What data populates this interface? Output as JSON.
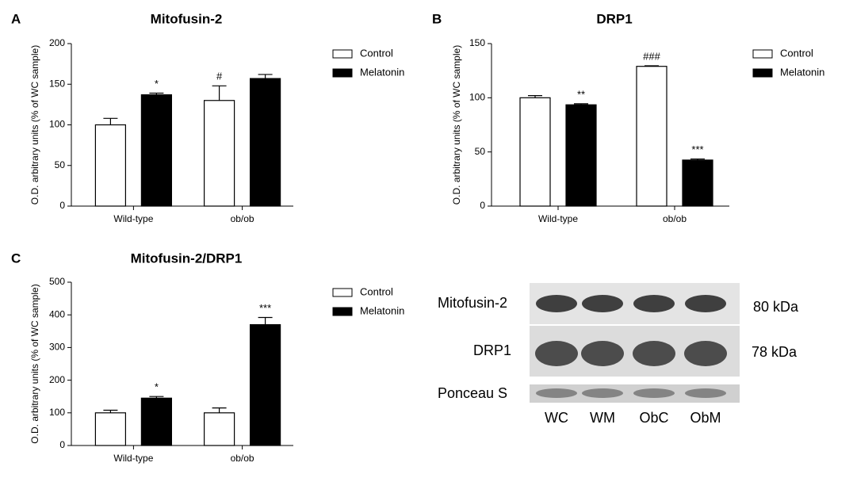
{
  "chart_data": [
    {
      "type": "bar",
      "panel": "A",
      "title": "Mitofusin-2",
      "y_label": "O.D. arbitrary units (% of WC sample)",
      "categories": [
        "Wild-type",
        "ob/ob"
      ],
      "series": [
        {
          "name": "Control",
          "color": "#ffffff",
          "values": [
            100,
            130
          ],
          "errors": [
            8,
            18
          ],
          "annotations": [
            null,
            "#"
          ]
        },
        {
          "name": "Melatonin",
          "color": "#000000",
          "values": [
            137,
            157
          ],
          "errors": [
            2,
            5
          ],
          "annotations": [
            "*",
            null
          ]
        }
      ],
      "ylim": [
        0,
        200
      ],
      "yticks": [
        0,
        50,
        100,
        150,
        200
      ],
      "grid": false
    },
    {
      "type": "bar",
      "panel": "B",
      "title": "DRP1",
      "y_label": "O.D. arbitrary units (% of WC sample)",
      "categories": [
        "Wild-type",
        "ob/ob"
      ],
      "series": [
        {
          "name": "Control",
          "color": "#ffffff",
          "values": [
            100,
            129
          ],
          "errors": [
            2,
            0.5
          ],
          "annotations": [
            null,
            "###"
          ]
        },
        {
          "name": "Melatonin",
          "color": "#000000",
          "values": [
            93.5,
            42.5
          ],
          "errors": [
            1,
            1
          ],
          "annotations": [
            "**",
            "***"
          ]
        }
      ],
      "ylim": [
        0,
        150
      ],
      "yticks": [
        0,
        50,
        100,
        150
      ],
      "grid": false
    },
    {
      "type": "bar",
      "panel": "C",
      "title": "Mitofusin-2/DRP1",
      "y_label": "O.D. arbitrary units (% of WC sample)",
      "categories": [
        "Wild-type",
        "ob/ob"
      ],
      "series": [
        {
          "name": "Control",
          "color": "#ffffff",
          "values": [
            100,
            100
          ],
          "errors": [
            8,
            15
          ],
          "annotations": [
            null,
            null
          ]
        },
        {
          "name": "Melatonin",
          "color": "#000000",
          "values": [
            145,
            370
          ],
          "errors": [
            5,
            22
          ],
          "annotations": [
            "*",
            "***"
          ]
        }
      ],
      "ylim": [
        0,
        500
      ],
      "yticks": [
        0,
        100,
        200,
        300,
        400,
        500
      ],
      "grid": false
    }
  ],
  "blot": {
    "rows": [
      {
        "label": "Mitofusin-2",
        "size": "80 kDa"
      },
      {
        "label": "DRP1",
        "size": "78 kDa"
      },
      {
        "label": "Ponceau S"
      }
    ],
    "lanes": [
      "WC",
      "WM",
      "ObC",
      "ObM"
    ]
  }
}
